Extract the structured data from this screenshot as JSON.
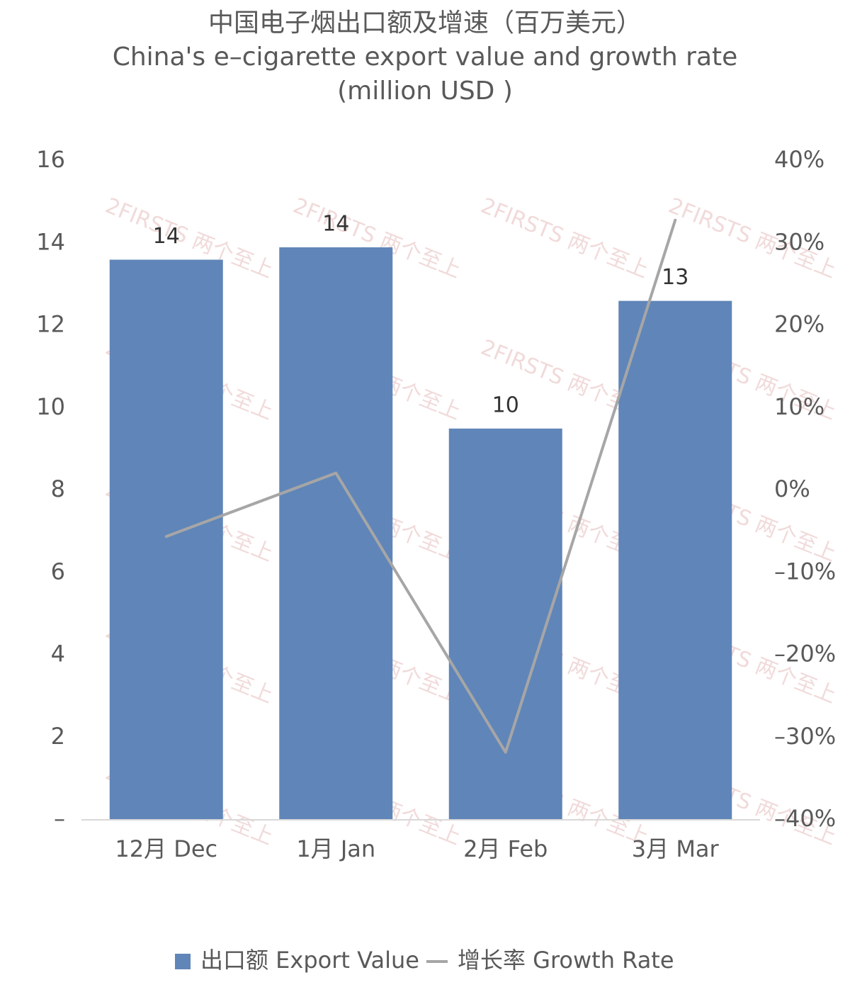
{
  "chart_data": {
    "type": "bar",
    "title": [
      "中国电子烟出口额及增速（百万美元）",
      "China's e–cigarette export value and growth rate",
      "(million USD )"
    ],
    "watermark": "2FIRSTS 两个至上",
    "categories": [
      "12月 Dec",
      "1月 Jan",
      "2月 Feb",
      "3月 Mar"
    ],
    "series": [
      {
        "name": "出口额 Export Value",
        "type": "bar",
        "color": "#6085b8",
        "values": [
          13.6,
          13.9,
          9.5,
          12.6
        ],
        "value_labels": [
          "14",
          "14",
          "10",
          "13"
        ]
      },
      {
        "name": "增长率 Growth Rate",
        "type": "line",
        "color": "#a6a6a6",
        "axis": "y2",
        "values": [
          -5.6,
          2.1,
          -31.8,
          32.8
        ]
      }
    ],
    "ylim": [
      0,
      16
    ],
    "yticks": [
      {
        "value": 0,
        "label": "–"
      },
      2,
      4,
      6,
      8,
      10,
      12,
      14,
      16
    ],
    "y2lim": [
      -40,
      40
    ],
    "y2ticks": [
      {
        "value": -40,
        "label": "–40%"
      },
      {
        "value": -30,
        "label": "–30%"
      },
      {
        "value": -20,
        "label": "–20%"
      },
      {
        "value": -10,
        "label": "–10%"
      },
      {
        "value": 0,
        "label": "0%"
      },
      {
        "value": 10,
        "label": "10%"
      },
      {
        "value": 20,
        "label": "20%"
      },
      {
        "value": 30,
        "label": "30%"
      },
      {
        "value": 40,
        "label": "40%"
      }
    ],
    "grid": false,
    "legend": "bottom"
  }
}
